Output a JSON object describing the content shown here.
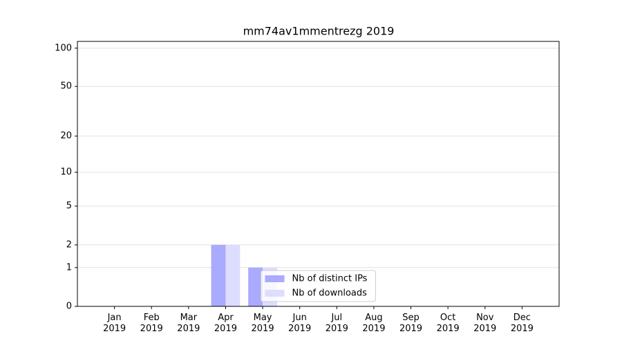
{
  "chart_data": {
    "type": "bar",
    "title": "mm74av1mmentrezg 2019",
    "categories": [
      "Jan\n2019",
      "Feb\n2019",
      "Mar\n2019",
      "Apr\n2019",
      "May\n2019",
      "Jun\n2019",
      "Jul\n2019",
      "Aug\n2019",
      "Sep\n2019",
      "Oct\n2019",
      "Nov\n2019",
      "Dec\n2019"
    ],
    "series": [
      {
        "name": "Nb of distinct IPs",
        "color": "#aaaaff",
        "values": [
          0,
          0,
          0,
          2,
          1,
          0,
          0,
          0,
          0,
          0,
          0,
          0
        ]
      },
      {
        "name": "Nb of downloads",
        "color": "#ddddff",
        "values": [
          0,
          0,
          0,
          2,
          1,
          0,
          0,
          0,
          0,
          0,
          0,
          0
        ]
      }
    ],
    "yscale": "log1p",
    "ylim": [
      0,
      113
    ],
    "yticks": [
      0,
      1,
      2,
      5,
      10,
      20,
      50,
      100
    ],
    "grid": true,
    "legend": "lower center"
  }
}
